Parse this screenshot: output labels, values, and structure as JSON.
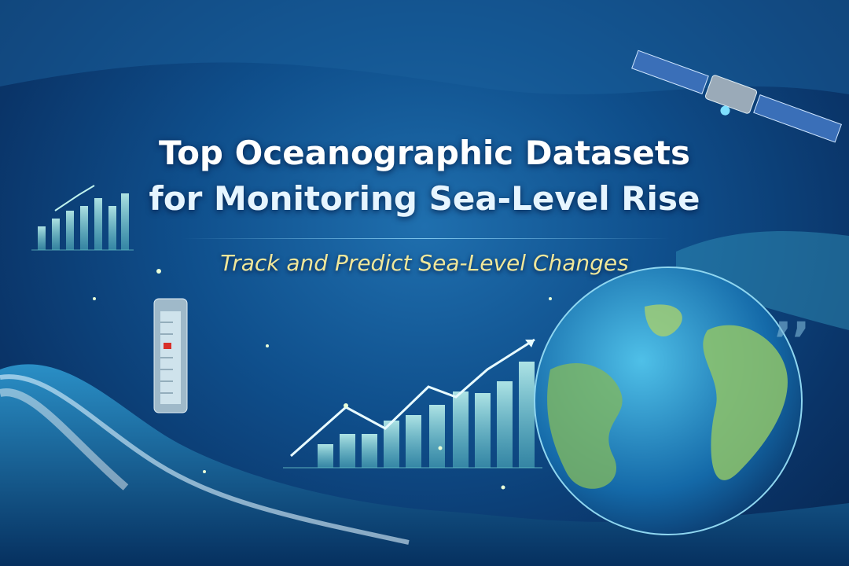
{
  "header": {
    "title_line1": "Top Oceanographic Datasets",
    "title_line2": "for Monitoring Sea-Level Rise",
    "subtitle": "Track and Predict Sea-Level Changes"
  },
  "colors": {
    "ocean": "#0f4f8c",
    "title": "#ffffff",
    "subtitle": "#f0e79a",
    "accent": "#7fe0d8"
  },
  "icons": [
    "satellite-icon",
    "tide-gauge-icon",
    "bar-chart-icon",
    "globe-icon",
    "quote-icon"
  ]
}
